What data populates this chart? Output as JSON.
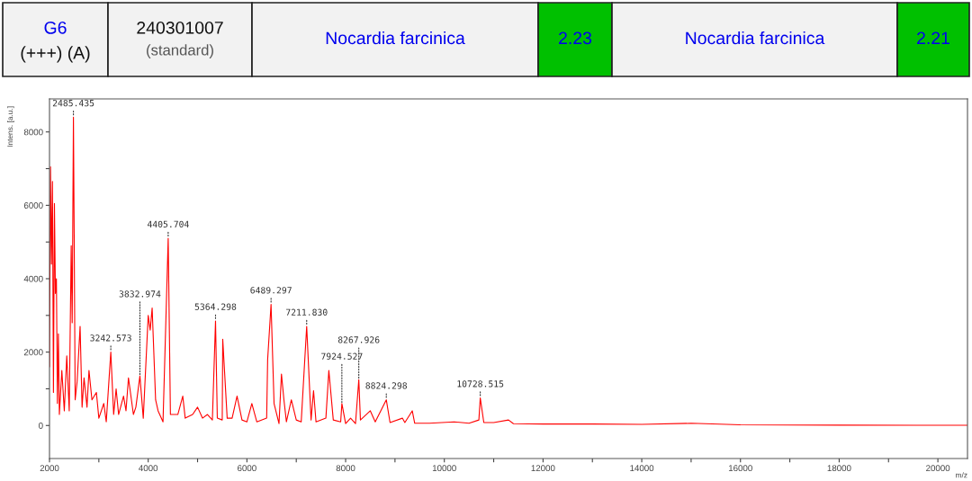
{
  "chart_data": {
    "type": "line",
    "xlabel": "m/z",
    "ylabel": "Intens. [a.u.]",
    "x": [
      2000,
      2020,
      2040,
      2060,
      2080,
      2100,
      2120,
      2140,
      2160,
      2180,
      2200,
      2250,
      2300,
      2350,
      2400,
      2440,
      2460,
      2485,
      2500,
      2520,
      2560,
      2620,
      2660,
      2700,
      2760,
      2800,
      2860,
      2950,
      3000,
      3100,
      3150,
      3242,
      3300,
      3350,
      3400,
      3500,
      3550,
      3600,
      3700,
      3750,
      3832,
      3900,
      4000,
      4040,
      4080,
      4150,
      4200,
      4300,
      4405,
      4450,
      4600,
      4700,
      4750,
      4900,
      5000,
      5100,
      5200,
      5300,
      5364,
      5400,
      5500,
      5510,
      5600,
      5700,
      5800,
      5900,
      6000,
      6100,
      6200,
      6400,
      6420,
      6489,
      6550,
      6650,
      6700,
      6750,
      6800,
      6900,
      7000,
      7100,
      7211,
      7300,
      7350,
      7400,
      7600,
      7660,
      7750,
      7900,
      7924,
      8000,
      8100,
      8200,
      8267,
      8300,
      8500,
      8600,
      8824,
      8900,
      9150,
      9200,
      9350,
      9400,
      9700,
      10200,
      10500,
      10700,
      10728,
      10800,
      11000,
      11300,
      11400,
      12000,
      13000,
      14000,
      15000,
      16000,
      18000,
      20000,
      20600
    ],
    "series": [
      {
        "color": "#ff0000",
        "values": [
          1600,
          7050,
          4400,
          6650,
          900,
          6050,
          3600,
          4000,
          600,
          2500,
          300,
          1500,
          400,
          1900,
          400,
          4900,
          2800,
          8400,
          5200,
          700,
          1200,
          2700,
          500,
          1300,
          500,
          1500,
          700,
          900,
          200,
          600,
          100,
          2000,
          300,
          1000,
          300,
          800,
          400,
          1300,
          300,
          500,
          1350,
          200,
          3000,
          2600,
          3200,
          700,
          400,
          100,
          5100,
          300,
          300,
          800,
          200,
          300,
          500,
          200,
          300,
          150,
          2850,
          200,
          150,
          2350,
          200,
          200,
          800,
          150,
          100,
          600,
          100,
          200,
          1800,
          3300,
          600,
          50,
          1400,
          700,
          100,
          700,
          150,
          100,
          2700,
          150,
          950,
          100,
          200,
          1500,
          150,
          100,
          600,
          50,
          200,
          50,
          1250,
          150,
          400,
          100,
          700,
          80,
          200,
          80,
          400,
          60,
          60,
          100,
          60,
          150,
          750,
          80,
          80,
          150,
          50,
          40,
          40,
          30,
          60,
          20,
          10,
          5,
          5
        ]
      }
    ],
    "xlim": [
      2000,
      20600
    ],
    "ylim": [
      -900,
      8900
    ],
    "xticks": [
      2000,
      {
        "value": 3000,
        "label": null
      },
      4000,
      {
        "value": 5000,
        "label": null
      },
      6000,
      {
        "value": 7000,
        "label": null
      },
      8000,
      {
        "value": 9000,
        "label": null
      },
      10000,
      {
        "value": 11000,
        "label": null
      },
      12000,
      {
        "value": 13000,
        "label": null
      },
      14000,
      {
        "value": 15000,
        "label": null
      },
      16000,
      {
        "value": 17000,
        "label": null
      },
      18000,
      {
        "value": 19000,
        "label": null
      },
      20000
    ],
    "yticks": [
      0,
      {
        "value": 1000,
        "label": null
      },
      2000,
      {
        "value": 3000,
        "label": null
      },
      4000,
      {
        "value": 5000,
        "label": null
      },
      6000,
      {
        "value": 7000,
        "label": null
      },
      8000
    ],
    "grid": false,
    "marker": "none",
    "line_style": "solid",
    "annotations": [
      "G6",
      "(+++) (A)",
      "240301007",
      "(standard)",
      "Nocardia farcinica",
      "2.23",
      "Nocardia farcinica",
      "2.21",
      {
        "text": "2485.435",
        "x": 2485,
        "y": 8400
      },
      {
        "text": "3242.573",
        "x": 3242,
        "y": 2000
      },
      {
        "text": "3832.974",
        "x": 3832,
        "y": 1350
      },
      {
        "text": "4405.704",
        "x": 4405,
        "y": 5100
      },
      {
        "text": "5364.298",
        "x": 5364,
        "y": 2850
      },
      {
        "text": "6489.297",
        "x": 6489,
        "y": 3300
      },
      {
        "text": "7211.830",
        "x": 7211,
        "y": 2700
      },
      {
        "text": "7924.527",
        "x": 7924,
        "y": 600
      },
      {
        "text": "8267.926",
        "x": 8267,
        "y": 1250
      },
      {
        "text": "8824.298",
        "x": 8824,
        "y": 700
      },
      {
        "text": "10728.515",
        "x": 10728,
        "y": 750
      }
    ]
  }
}
